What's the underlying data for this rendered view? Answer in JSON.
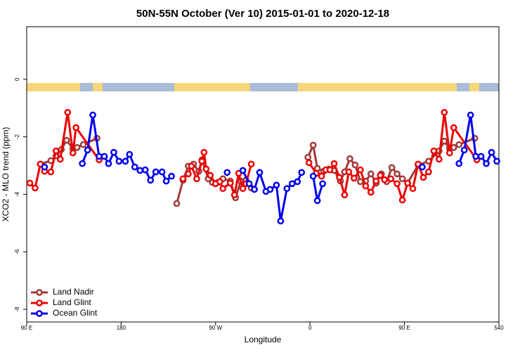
{
  "chart_data": {
    "type": "line",
    "title": "50N-55N October (Ver 10)   2015-01-01 to 2020-12-18",
    "x_label": "Longitude",
    "y_label": "XCO2 - MLO trend (ppm)",
    "xlim": [
      90,
      540
    ],
    "ylim": [
      -8.44,
      1.83
    ],
    "xticks": [
      {
        "value": 90,
        "label": "90 E"
      },
      180,
      {
        "value": 270,
        "label": "90 W"
      },
      {
        "value": 360,
        "label": "0"
      },
      {
        "value": 450,
        "label": "90 E"
      },
      540
    ],
    "yticks": [
      0,
      -2,
      -4,
      -6,
      -8
    ],
    "legend": "bottomleft",
    "series": [
      {
        "name": "Land Nadir",
        "color": "#a03a3a",
        "x": [
          103,
          113,
          118,
          123,
          128,
          134,
          138,
          144,
          157,
          null,
          233,
          239,
          244,
          249,
          254,
          257,
          263,
          267,
          272,
          277,
          284,
          289,
          294,
          299,
          304,
          null,
          358,
          363,
          367,
          373,
          378,
          383,
          389,
          393,
          398,
          403,
          408,
          413,
          418,
          423,
          428,
          433,
          438,
          443,
          448,
          453,
          463,
          473,
          483,
          488,
          493,
          497,
          502,
          517
        ],
        "values": [
          -2.95,
          -2.83,
          -2.66,
          -2.44,
          -2.12,
          -2.41,
          -2.37,
          -2.27,
          -2.05,
          null,
          -4.32,
          -3.51,
          -3.02,
          -2.95,
          -3.2,
          -2.8,
          -3.46,
          -3.59,
          -3.59,
          -3.46,
          -3.54,
          -4.12,
          -3.54,
          -3.51,
          -3.78,
          null,
          -2.71,
          -2.29,
          -3.1,
          -3.2,
          -3.12,
          -3.17,
          -3.54,
          -3.22,
          -2.76,
          -2.98,
          -3.56,
          -3.54,
          -3.29,
          -3.61,
          -3.29,
          -3.56,
          -3.07,
          -3.29,
          -3.46,
          -3.61,
          -2.98,
          -2.85,
          -2.49,
          -2.15,
          -2.41,
          -2.37,
          -2.27,
          -2.05
        ]
      },
      {
        "name": "Land Glint",
        "color": "#ee0000",
        "x": [
          93,
          98,
          103,
          107,
          113,
          118,
          122,
          129,
          134,
          137,
          159,
          null,
          239,
          244,
          247,
          252,
          257,
          259,
          261,
          265,
          270,
          274,
          277,
          284,
          288,
          292,
          296,
          299,
          304,
          null,
          359,
          366,
          371,
          375,
          379,
          383,
          388,
          393,
          397,
          402,
          408,
          413,
          418,
          423,
          427,
          431,
          437,
          443,
          448,
          453,
          458,
          463,
          468,
          473,
          478,
          483,
          488,
          493,
          497,
          519
        ],
        "values": [
          -3.61,
          -3.78,
          -2.95,
          -3.2,
          -3.22,
          -2.49,
          -2.78,
          -1.15,
          -2.56,
          -1.68,
          -2.8,
          null,
          -3.46,
          -3.29,
          -3.02,
          -3.46,
          -2.85,
          -2.54,
          -3.12,
          -3.34,
          -3.63,
          -3.56,
          -3.8,
          -3.61,
          -4.02,
          -3.27,
          -3.8,
          -3.63,
          -2.95,
          null,
          -2.9,
          -3.27,
          -3.37,
          -3.15,
          -3.15,
          -2.93,
          -3.41,
          -4.02,
          -3.22,
          -3.44,
          -3.15,
          -3.71,
          -3.93,
          -3.54,
          -3.34,
          -3.49,
          -3.46,
          -3.63,
          -4.2,
          -3.61,
          -3.8,
          -2.95,
          -3.41,
          -3.22,
          -2.49,
          -2.78,
          -1.15,
          -2.56,
          -1.68,
          -2.8
        ]
      },
      {
        "name": "Ocean Glint",
        "color": "#0000ee",
        "x": [
          107,
          null,
          143,
          148,
          153,
          159,
          164,
          168,
          173,
          178,
          184,
          188,
          193,
          198,
          203,
          208,
          213,
          219,
          223,
          228,
          null,
          281,
          null,
          296,
          302,
          307,
          312,
          318,
          322,
          328,
          332,
          338,
          343,
          348,
          352,
          null,
          363,
          367,
          372,
          null,
          467,
          null,
          502,
          507,
          513,
          518,
          523,
          528,
          533,
          538
        ],
        "values": [
          -3.05,
          null,
          -2.93,
          -2.46,
          -1.24,
          -2.68,
          -2.68,
          -2.93,
          -2.54,
          -2.85,
          -2.85,
          -2.61,
          -3.05,
          -3.17,
          -3.15,
          -3.51,
          -3.22,
          -3.22,
          -3.54,
          -3.37,
          null,
          -3.24,
          null,
          -3.17,
          -3.63,
          -3.83,
          -3.24,
          -3.9,
          -3.83,
          -3.68,
          -4.93,
          -3.8,
          -3.63,
          -3.56,
          -3.24,
          null,
          -3.37,
          -4.22,
          -3.63,
          null,
          -3.05,
          null,
          -2.93,
          -2.46,
          -1.24,
          -2.68,
          -2.68,
          -2.93,
          -2.54,
          -2.85
        ]
      }
    ]
  }
}
